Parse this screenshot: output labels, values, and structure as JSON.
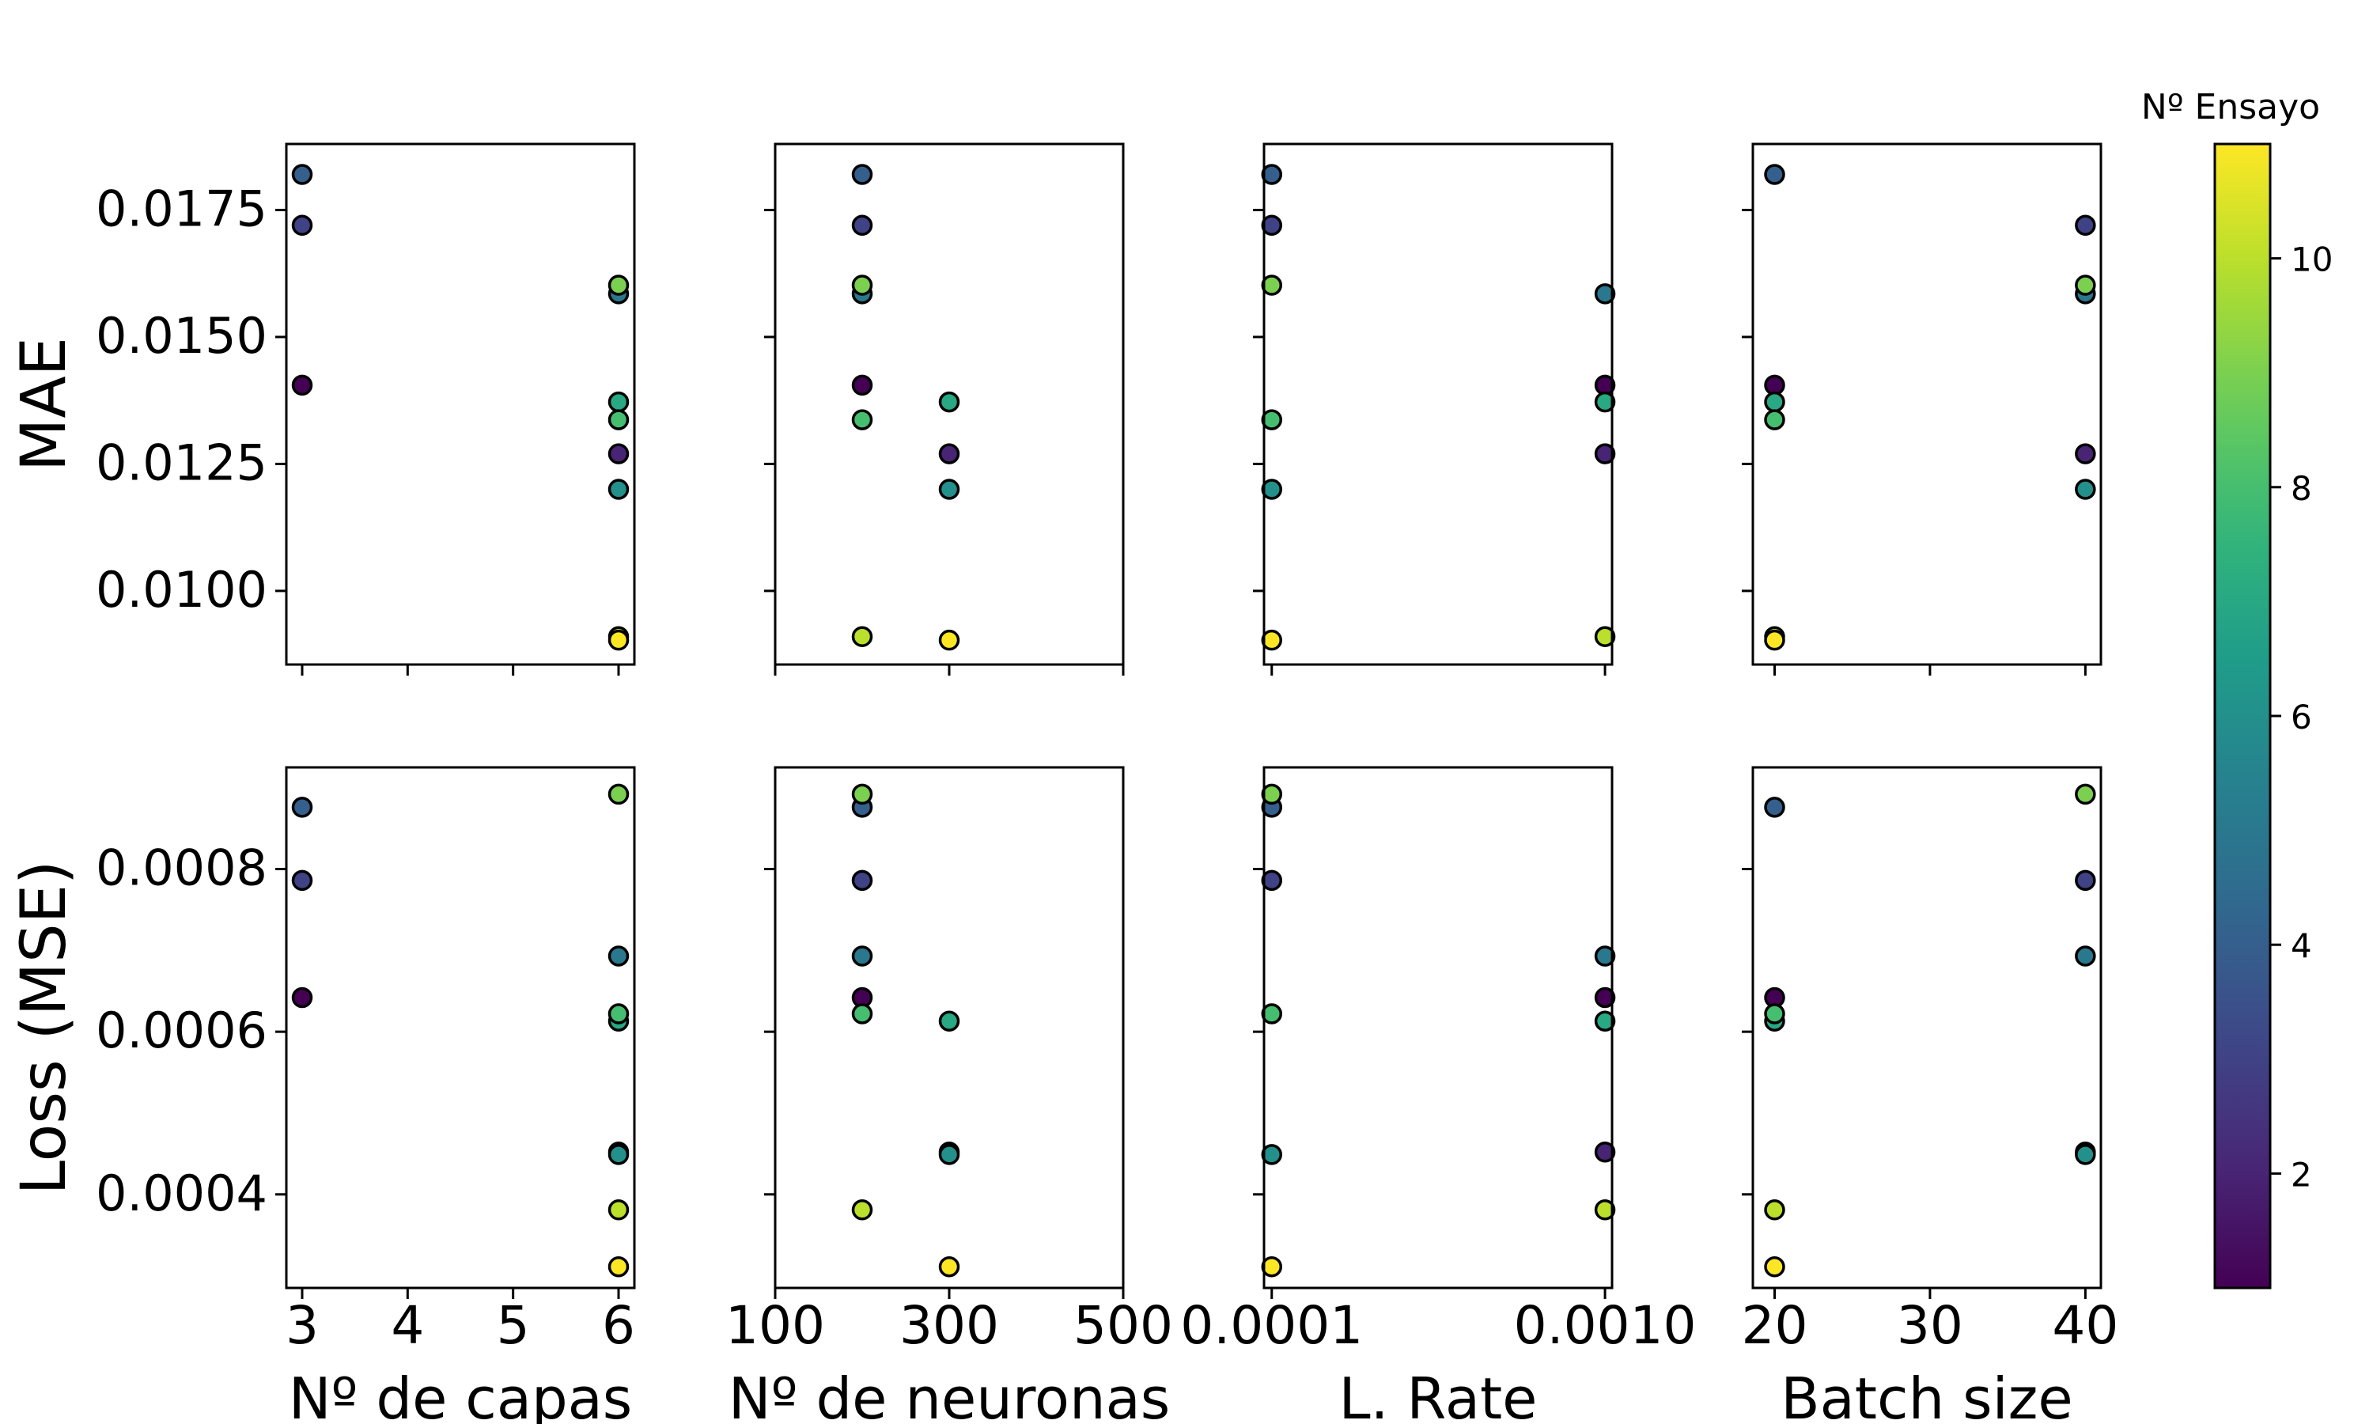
{
  "chart_data": {
    "type": "scatter",
    "title": "",
    "colorbar": {
      "label": "Nº Ensayo",
      "colormap": "viridis",
      "range": [
        1,
        11
      ],
      "ticks": [
        2,
        4,
        6,
        8,
        10
      ],
      "tick_labels": [
        "2",
        "4",
        "6",
        "8",
        "10"
      ]
    },
    "marker": {
      "edge_color": "#000000",
      "filled_by": "Nº Ensayo"
    },
    "rows": [
      {
        "ylabel": "MAE",
        "ylim": [
          0.00855,
          0.0188
        ],
        "yticks": [
          0.01,
          0.0125,
          0.015,
          0.0175
        ],
        "ytick_labels": [
          "0.0100",
          "0.0125",
          "0.0150",
          "0.0175"
        ]
      },
      {
        "ylabel": "Loss (MSE)",
        "ylim": [
          0.000285,
          0.000925
        ],
        "yticks": [
          0.0004,
          0.0006,
          0.0008
        ],
        "ytick_labels": [
          "0.0004",
          "0.0006",
          "0.0008"
        ]
      }
    ],
    "columns": [
      {
        "xlabel": "Nº de capas",
        "scale": "linear",
        "xlim": [
          2.85,
          6.15
        ],
        "xticks": [
          3,
          4,
          5,
          6
        ],
        "xtick_labels": [
          "3",
          "4",
          "5",
          "6"
        ]
      },
      {
        "xlabel": "Nº de neuronas",
        "scale": "linear",
        "xlim": [
          100,
          500
        ],
        "xticks": [
          100,
          300,
          500
        ],
        "xtick_labels": [
          "100",
          "300",
          "500"
        ]
      },
      {
        "xlabel": "L. Rate",
        "scale": "log",
        "xlim": [
          9.48e-05,
          0.00105
        ],
        "xticks": [
          0.0001,
          0.001
        ],
        "xtick_labels": [
          "0.0001",
          "0.0010"
        ]
      },
      {
        "xlabel": "Batch size",
        "scale": "linear",
        "xlim": [
          18.6,
          41.0
        ],
        "xticks": [
          20,
          30,
          40
        ],
        "xtick_labels": [
          "20",
          "30",
          "40"
        ]
      }
    ],
    "series": [
      {
        "trial": 1,
        "capas": 3,
        "neuronas": 200,
        "lr": 0.001,
        "batch": 20,
        "mae": 0.01405,
        "loss": 0.000642
      },
      {
        "trial": 2,
        "capas": 6,
        "neuronas": 300,
        "lr": 0.001,
        "batch": 40,
        "mae": 0.0127,
        "loss": 0.000452
      },
      {
        "trial": 3,
        "capas": 3,
        "neuronas": 200,
        "lr": 0.0001,
        "batch": 40,
        "mae": 0.0172,
        "loss": 0.000786
      },
      {
        "trial": 4,
        "capas": 3,
        "neuronas": 200,
        "lr": 0.0001,
        "batch": 20,
        "mae": 0.0182,
        "loss": 0.000876
      },
      {
        "trial": 5,
        "capas": 6,
        "neuronas": 200,
        "lr": 0.001,
        "batch": 40,
        "mae": 0.01585,
        "loss": 0.000693
      },
      {
        "trial": 6,
        "capas": 6,
        "neuronas": 300,
        "lr": 0.0001,
        "batch": 40,
        "mae": 0.012,
        "loss": 0.000449
      },
      {
        "trial": 7,
        "capas": 6,
        "neuronas": 300,
        "lr": 0.001,
        "batch": 20,
        "mae": 0.01372,
        "loss": 0.000613
      },
      {
        "trial": 8,
        "capas": 6,
        "neuronas": 200,
        "lr": 0.0001,
        "batch": 20,
        "mae": 0.01337,
        "loss": 0.000622
      },
      {
        "trial": 9,
        "capas": 6,
        "neuronas": 200,
        "lr": 0.0001,
        "batch": 40,
        "mae": 0.01602,
        "loss": 0.000892
      },
      {
        "trial": 10,
        "capas": 6,
        "neuronas": 200,
        "lr": 0.001,
        "batch": 20,
        "mae": 0.0091,
        "loss": 0.000381
      },
      {
        "trial": 11,
        "capas": 6,
        "neuronas": 300,
        "lr": 0.0001,
        "batch": 20,
        "mae": 0.00903,
        "loss": 0.000311
      }
    ]
  }
}
